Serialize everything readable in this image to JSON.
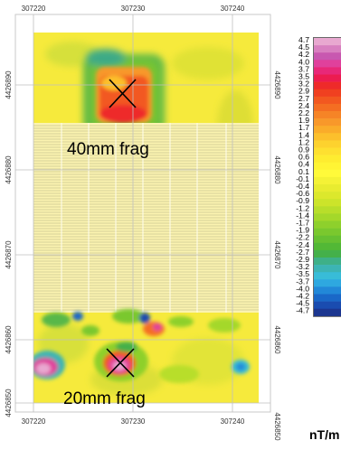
{
  "map": {
    "x_ticks": [
      "307220",
      "307230",
      "307240"
    ],
    "y_ticks": [
      "4426890",
      "4426880",
      "4426870",
      "4426860",
      "4426850"
    ],
    "annotations": [
      "40mm  frag",
      "20mm  frag"
    ]
  },
  "legend": {
    "unit": "nT/m",
    "labels": [
      "4.7",
      "4.5",
      "4.2",
      "4.0",
      "3.7",
      "3.5",
      "3.2",
      "2.9",
      "2.7",
      "2.4",
      "2.2",
      "1.9",
      "1.7",
      "1.4",
      "1.2",
      "0.9",
      "0.6",
      "0.4",
      "0.1",
      "-0.1",
      "-0.4",
      "-0.6",
      "-0.9",
      "-1.2",
      "-1.4",
      "-1.7",
      "-1.9",
      "-2.2",
      "-2.4",
      "-2.7",
      "-2.9",
      "-3.2",
      "-3.5",
      "-3.7",
      "-4.0",
      "-4.2",
      "-4.5",
      "-4.7"
    ],
    "colors": [
      "#e8a8d0",
      "#d880c0",
      "#c858b0",
      "#e0409c",
      "#e82878",
      "#ec1c50",
      "#ee2a2a",
      "#f04020",
      "#f25820",
      "#f46e22",
      "#f68426",
      "#f8982a",
      "#faac2a",
      "#fcc02c",
      "#fdd22e",
      "#fee030",
      "#feec30",
      "#fff434",
      "#fffa3a",
      "#f4f236",
      "#e8ec30",
      "#dce82c",
      "#cce42a",
      "#b8de2a",
      "#a4d82a",
      "#8ed02c",
      "#7ac82e",
      "#66c032",
      "#52b836",
      "#44b04a",
      "#3eb088",
      "#3cb4b4",
      "#38bcd8",
      "#2ea8e0",
      "#2288d8",
      "#1a68c8",
      "#1a4cb0",
      "#1c3690"
    ]
  }
}
